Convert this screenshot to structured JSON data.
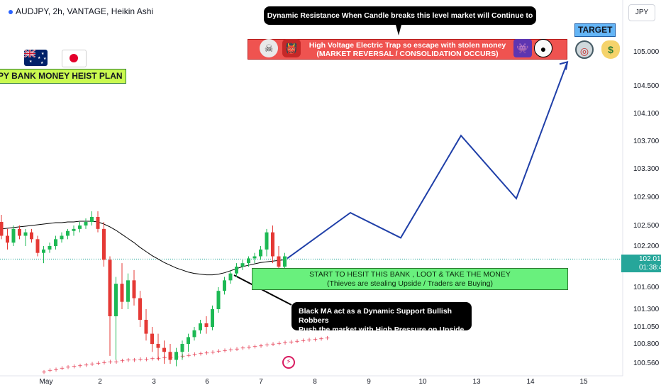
{
  "header": {
    "symbol": "AUDJPY",
    "timeframe": "2h",
    "broker": "VANTAGE",
    "style": "Heikin Ashi",
    "title": "AUDJPY, 2h, VANTAGE, Heikin Ashi"
  },
  "plan_label": "PY BANK MONEY HEIST PLAN",
  "currency_tag": "JPY",
  "target_label": "TARGET",
  "callouts": {
    "dynamic_resistance": "Dynamic Resistance When Candle breaks this level market will Continue to go UP",
    "trap_line1": "High Voltage Electric Trap so escape with stolen money",
    "trap_line2": "(MARKET REVERSAL / CONSOLIDATION OCCURS)",
    "start_line1": "START TO HESIT THIS BANK , LOOT & TAKE THE MONEY",
    "start_line2": "(Thieves are stealing Upside / Traders are Buying)",
    "ma_line1": "Black MA act as a Dynamic Support Bullish Robbers",
    "ma_line2": "Push the market with High Pressure on Upside"
  },
  "icons": {
    "skull": "skull-icon",
    "ogre": "ogre-icon",
    "alien": "alien-icon",
    "panda": "panda-icon",
    "target": "target-icon",
    "money": "money-bag-icon",
    "flash": "flash-icon",
    "flag_au": "australia-flag-icon",
    "flag_jp": "japan-flag-icon"
  },
  "current_price": {
    "value": "102.010",
    "countdown": "01:38:44",
    "color": "#26a69a"
  },
  "colors": {
    "bull": "#26a69a",
    "bear": "#ef5350",
    "bull_candle": "#1db954",
    "bear_candle": "#e53935",
    "projection": "#1f3fa8",
    "ma_black": "#000000",
    "ma_red": "#e53950"
  },
  "chart_data": {
    "type": "candlestick",
    "y_axis": {
      "ticks": [
        "105.000",
        "104.500",
        "104.100",
        "103.700",
        "103.300",
        "102.900",
        "102.500",
        "102.200",
        "101.600",
        "101.300",
        "101.050",
        "100.800",
        "100.560"
      ],
      "tick_values": [
        105.0,
        104.5,
        104.1,
        103.7,
        103.3,
        102.9,
        102.5,
        102.2,
        101.6,
        101.3,
        101.05,
        100.8,
        100.56
      ]
    },
    "x_axis": {
      "ticks": [
        "May",
        "2",
        "3",
        "6",
        "7",
        "8",
        "9",
        "10",
        "13",
        "14",
        "15"
      ],
      "tick_x_index": [
        0,
        1,
        2,
        3,
        4,
        5,
        6,
        7,
        8,
        9,
        10
      ]
    },
    "candles": [
      {
        "i": 0,
        "o": 102.55,
        "h": 102.65,
        "l": 102.3,
        "c": 102.35
      },
      {
        "i": 1,
        "o": 102.35,
        "h": 102.45,
        "l": 102.15,
        "c": 102.25
      },
      {
        "i": 2,
        "o": 102.25,
        "h": 102.5,
        "l": 102.2,
        "c": 102.45
      },
      {
        "i": 3,
        "o": 102.45,
        "h": 102.5,
        "l": 102.3,
        "c": 102.35
      },
      {
        "i": 4,
        "o": 102.35,
        "h": 102.45,
        "l": 102.2,
        "c": 102.4
      },
      {
        "i": 5,
        "o": 102.4,
        "h": 102.45,
        "l": 102.25,
        "c": 102.3
      },
      {
        "i": 6,
        "o": 102.3,
        "h": 102.35,
        "l": 102.05,
        "c": 102.1
      },
      {
        "i": 7,
        "o": 102.1,
        "h": 102.2,
        "l": 101.95,
        "c": 102.15
      },
      {
        "i": 8,
        "o": 102.15,
        "h": 102.25,
        "l": 102.1,
        "c": 102.2
      },
      {
        "i": 9,
        "o": 102.2,
        "h": 102.35,
        "l": 102.15,
        "c": 102.3
      },
      {
        "i": 10,
        "o": 102.3,
        "h": 102.4,
        "l": 102.25,
        "c": 102.35
      },
      {
        "i": 11,
        "o": 102.35,
        "h": 102.45,
        "l": 102.3,
        "c": 102.42
      },
      {
        "i": 12,
        "o": 102.42,
        "h": 102.5,
        "l": 102.35,
        "c": 102.45
      },
      {
        "i": 13,
        "o": 102.45,
        "h": 102.55,
        "l": 102.4,
        "c": 102.5
      },
      {
        "i": 14,
        "o": 102.5,
        "h": 102.6,
        "l": 102.45,
        "c": 102.55
      },
      {
        "i": 15,
        "o": 102.55,
        "h": 102.7,
        "l": 102.5,
        "c": 102.62
      },
      {
        "i": 16,
        "o": 102.62,
        "h": 102.7,
        "l": 102.4,
        "c": 102.45
      },
      {
        "i": 17,
        "o": 102.45,
        "h": 102.55,
        "l": 101.9,
        "c": 102.0
      },
      {
        "i": 18,
        "o": 102.0,
        "h": 102.05,
        "l": 100.65,
        "c": 101.2
      },
      {
        "i": 19,
        "o": 101.2,
        "h": 101.75,
        "l": 100.6,
        "c": 101.65
      },
      {
        "i": 20,
        "o": 101.65,
        "h": 101.95,
        "l": 101.3,
        "c": 101.4
      },
      {
        "i": 21,
        "o": 101.4,
        "h": 101.8,
        "l": 101.3,
        "c": 101.7
      },
      {
        "i": 22,
        "o": 101.7,
        "h": 101.85,
        "l": 101.35,
        "c": 101.45
      },
      {
        "i": 23,
        "o": 101.45,
        "h": 101.55,
        "l": 101.05,
        "c": 101.15
      },
      {
        "i": 24,
        "o": 101.15,
        "h": 101.3,
        "l": 100.85,
        "c": 100.95
      },
      {
        "i": 25,
        "o": 100.95,
        "h": 101.05,
        "l": 100.7,
        "c": 100.8
      },
      {
        "i": 26,
        "o": 100.8,
        "h": 100.95,
        "l": 100.6,
        "c": 100.75
      },
      {
        "i": 27,
        "o": 100.75,
        "h": 100.85,
        "l": 100.55,
        "c": 100.7
      },
      {
        "i": 28,
        "o": 100.7,
        "h": 100.8,
        "l": 100.55,
        "c": 100.6
      },
      {
        "i": 29,
        "o": 100.6,
        "h": 100.75,
        "l": 100.52,
        "c": 100.7
      },
      {
        "i": 30,
        "o": 100.7,
        "h": 100.85,
        "l": 100.6,
        "c": 100.8
      },
      {
        "i": 31,
        "o": 100.8,
        "h": 100.95,
        "l": 100.7,
        "c": 100.9
      },
      {
        "i": 32,
        "o": 100.9,
        "h": 101.05,
        "l": 100.85,
        "c": 101.0
      },
      {
        "i": 33,
        "o": 101.0,
        "h": 101.15,
        "l": 100.95,
        "c": 101.1
      },
      {
        "i": 34,
        "o": 101.1,
        "h": 101.2,
        "l": 100.95,
        "c": 101.05
      },
      {
        "i": 35,
        "o": 101.05,
        "h": 101.35,
        "l": 101.0,
        "c": 101.3
      },
      {
        "i": 36,
        "o": 101.3,
        "h": 101.6,
        "l": 101.25,
        "c": 101.55
      },
      {
        "i": 37,
        "o": 101.55,
        "h": 101.75,
        "l": 101.5,
        "c": 101.7
      },
      {
        "i": 38,
        "o": 101.7,
        "h": 101.85,
        "l": 101.65,
        "c": 101.8
      },
      {
        "i": 39,
        "o": 101.8,
        "h": 101.95,
        "l": 101.75,
        "c": 101.9
      },
      {
        "i": 40,
        "o": 101.9,
        "h": 102.0,
        "l": 101.85,
        "c": 101.95
      },
      {
        "i": 41,
        "o": 101.95,
        "h": 102.05,
        "l": 101.9,
        "c": 102.02
      },
      {
        "i": 42,
        "o": 102.02,
        "h": 102.1,
        "l": 101.95,
        "c": 102.05
      },
      {
        "i": 43,
        "o": 102.05,
        "h": 102.2,
        "l": 102.0,
        "c": 102.15
      },
      {
        "i": 44,
        "o": 102.15,
        "h": 102.45,
        "l": 102.05,
        "c": 102.4
      },
      {
        "i": 45,
        "o": 102.4,
        "h": 102.5,
        "l": 101.95,
        "c": 102.05
      },
      {
        "i": 46,
        "o": 102.05,
        "h": 102.2,
        "l": 101.7,
        "c": 101.9
      },
      {
        "i": 47,
        "o": 101.9,
        "h": 102.1,
        "l": 101.85,
        "c": 102.05
      }
    ],
    "ma_black": [
      102.45,
      102.46,
      102.47,
      102.48,
      102.49,
      102.5,
      102.51,
      102.52,
      102.53,
      102.54,
      102.54,
      102.55,
      102.55,
      102.56,
      102.56,
      102.56,
      102.55,
      102.52,
      102.48,
      102.43,
      102.37,
      102.31,
      102.25,
      102.18,
      102.12,
      102.06,
      102.01,
      101.96,
      101.92,
      101.88,
      101.85,
      101.82,
      101.8,
      101.79,
      101.78,
      101.78,
      101.79,
      101.81,
      101.84,
      101.87,
      101.9,
      101.92,
      101.94,
      101.96,
      101.97,
      101.98,
      101.99,
      102.0
    ],
    "ma_red": [
      100.45,
      100.47,
      100.48,
      100.5,
      100.51,
      100.52,
      100.53,
      100.54,
      100.55,
      100.56,
      100.57,
      100.58,
      100.58,
      100.59,
      100.6,
      100.6,
      100.61,
      100.61,
      100.62,
      100.62,
      100.63,
      100.63,
      100.64,
      100.65,
      100.66,
      100.67,
      100.68,
      100.69,
      100.7,
      100.71,
      100.72,
      100.73,
      100.74,
      100.75,
      100.76,
      100.77,
      100.78,
      100.79,
      100.8,
      100.81,
      100.82,
      100.83,
      100.84,
      100.85,
      100.86,
      100.87,
      100.88,
      100.89
    ],
    "projection": [
      {
        "label": "start",
        "y": 102.02
      },
      {
        "label": "p1",
        "y": 102.68
      },
      {
        "label": "p2",
        "y": 102.32
      },
      {
        "label": "p3",
        "y": 103.78
      },
      {
        "label": "p4",
        "y": 102.88
      },
      {
        "label": "target",
        "y": 104.85
      }
    ],
    "resistance_zone": {
      "low": 104.95,
      "high": 105.3
    },
    "entry_zone": {
      "low": 101.67,
      "high": 101.97
    }
  }
}
